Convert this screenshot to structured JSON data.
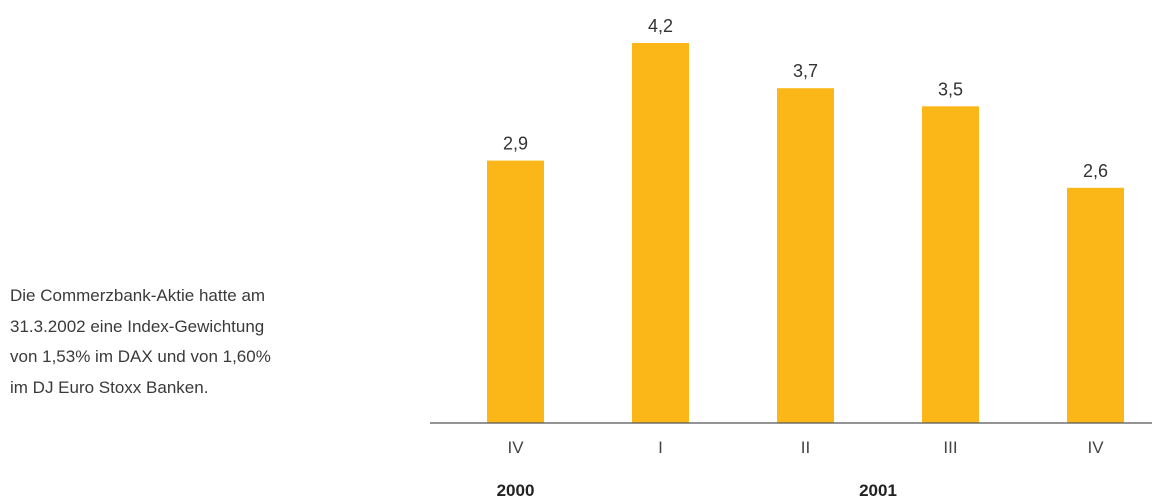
{
  "note": {
    "lines": [
      "Die Commerzbank-Aktie hatte am",
      "31.3.2002 eine Index-Gewichtung",
      "von 1,53% im DAX und von 1,60%",
      "im DJ Euro Stoxx Banken."
    ]
  },
  "chart_data": {
    "type": "bar",
    "categories": [
      "IV",
      "I",
      "II",
      "III",
      "IV"
    ],
    "values": [
      2.9,
      4.2,
      3.7,
      3.5,
      2.6
    ],
    "value_labels": [
      "2,9",
      "4,2",
      "3,7",
      "3,5",
      "2,6"
    ],
    "groups": [
      {
        "label": "2000",
        "categories": [
          0
        ]
      },
      {
        "label": "2001",
        "categories": [
          1,
          2,
          3,
          4
        ]
      }
    ],
    "title": "",
    "xlabel": "",
    "ylabel": "",
    "ylim": [
      0,
      4.5
    ],
    "grid": false,
    "bar_color": "#fbb718"
  }
}
